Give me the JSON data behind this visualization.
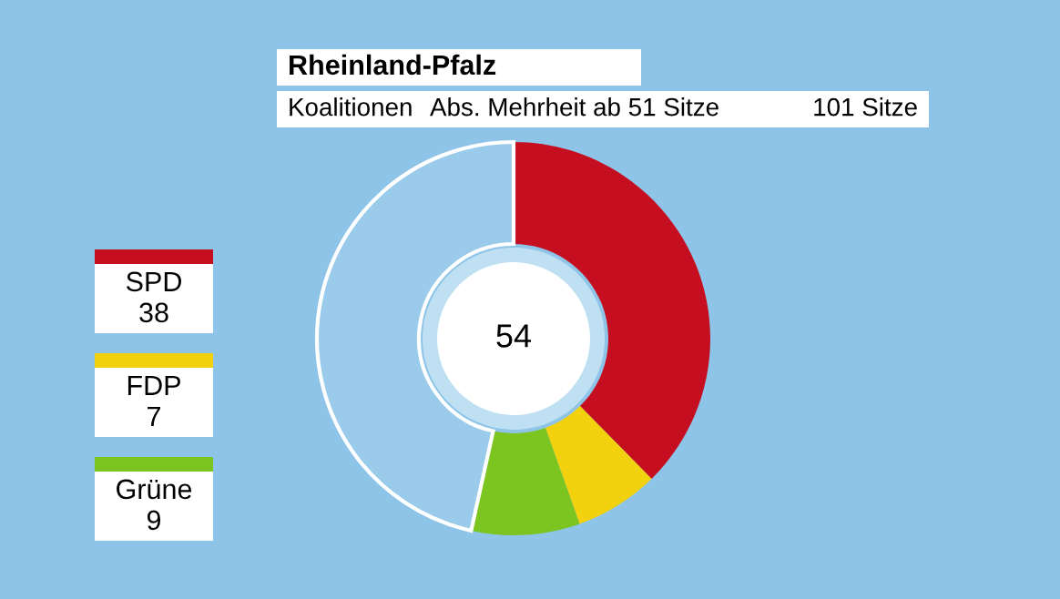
{
  "chart_data": {
    "type": "donut",
    "title": "Rheinland-Pfalz",
    "subtitle": "Koalitionen",
    "categories": [
      "SPD",
      "FDP",
      "Grüne",
      null
    ],
    "values": [
      38,
      7,
      9,
      47
    ],
    "colors": [
      "#c50e1f",
      "#f2d10e",
      "#7cc41f",
      "#ffffff"
    ],
    "value_labels": [
      "38",
      "7",
      "9",
      null
    ],
    "legend": "left",
    "annotations": [
      "Abs. Mehrheit ab 51 Sitze",
      "101 Sitze",
      "54"
    ]
  }
}
